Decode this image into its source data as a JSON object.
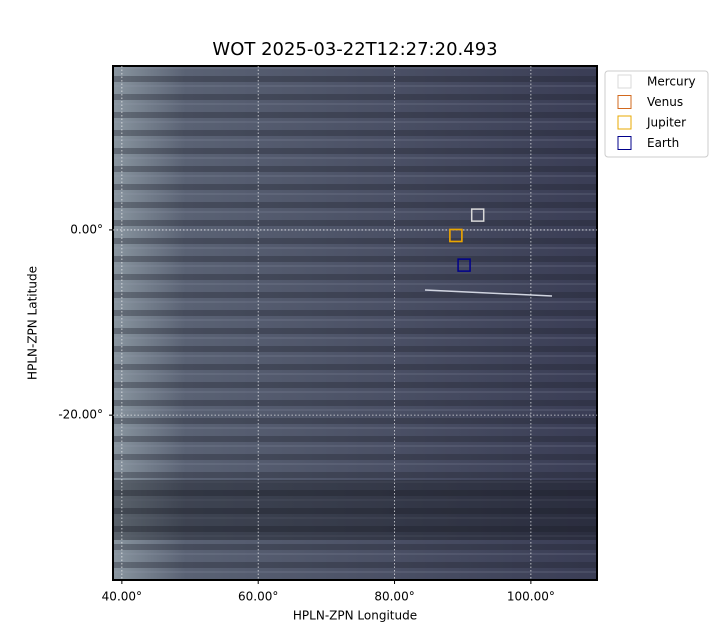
{
  "chart_data": {
    "type": "scatter",
    "title": "WOT 2025-03-22T12:27:20.493",
    "x_label": "HPLN-ZPN Longitude",
    "y_label": "HPLN-ZPN Latitude",
    "xlim": [
      38.7,
      109.7
    ],
    "ylim": [
      -37.8,
      17.7
    ],
    "xticks": [
      {
        "value": 40,
        "label": "40.00°"
      },
      {
        "value": 60,
        "label": "60.00°"
      },
      {
        "value": 80,
        "label": "80.00°"
      },
      {
        "value": 100,
        "label": "100.00°"
      }
    ],
    "yticks": [
      {
        "value": -20,
        "label": "-20.00°"
      },
      {
        "value": 0,
        "label": "0.00°"
      }
    ],
    "grid": true,
    "legend": "outside-upper-right",
    "series": [
      {
        "name": "Mercury",
        "color": "#d9d9d9",
        "x": [
          92.2
        ],
        "values": [
          1.6
        ]
      },
      {
        "name": "Venus",
        "color": "#d2691e",
        "x": [
          89.0
        ],
        "values": [
          -0.6
        ]
      },
      {
        "name": "Jupiter",
        "color": "#e8a800",
        "x": [
          89.0
        ],
        "values": [
          -0.6
        ]
      },
      {
        "name": "Earth",
        "color": "#00008b",
        "x": [
          90.2
        ],
        "values": [
          -3.8
        ]
      }
    ]
  }
}
